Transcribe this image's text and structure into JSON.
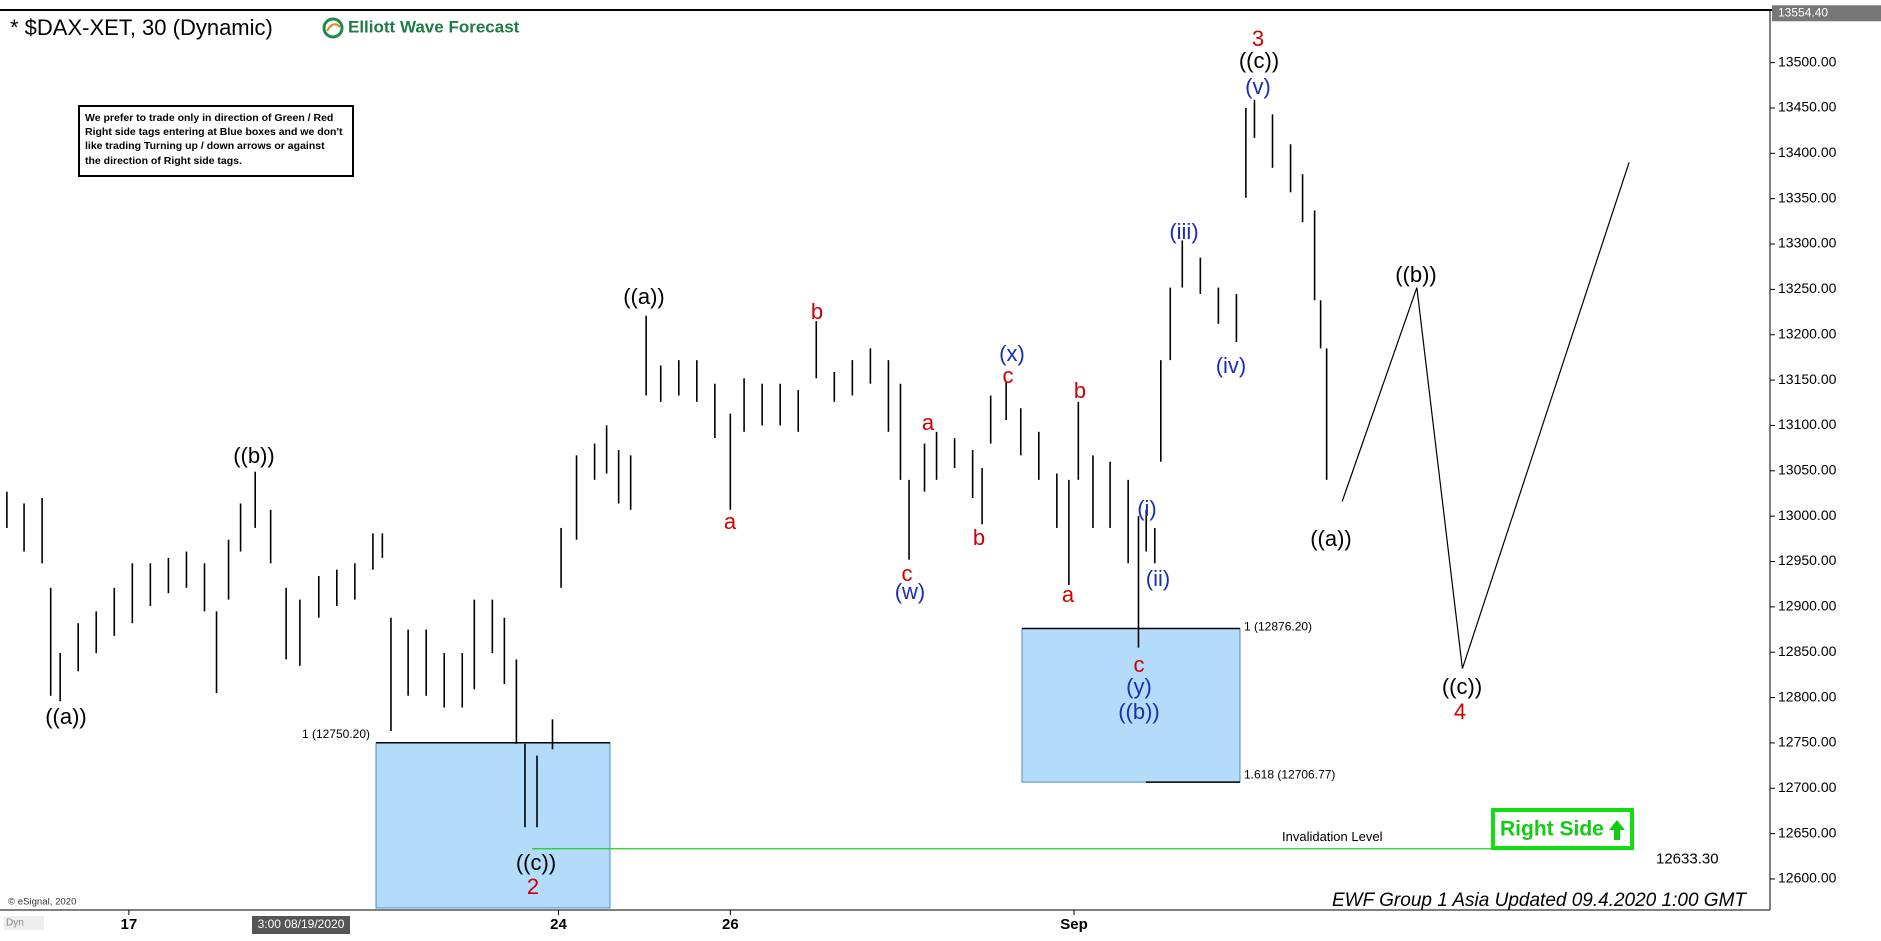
{
  "header": {
    "title": "* $DAX-XET, 30 (Dynamic)",
    "logo": "Elliott Wave Forecast"
  },
  "note": [
    "We prefer to trade only in direction of Green / Red",
    "Right side tags entering at Blue boxes and we don't",
    "like trading Turning up / down arrows or against",
    "the direction of Right side tags."
  ],
  "footer": {
    "update": "EWF Group 1 Asia Updated 09.4.2020 1:00 GMT",
    "copyright": "© eSignal, 2020",
    "dyn": "Dyn",
    "crosshair": "3:00 08/19/2020"
  },
  "right_side": "Right Side",
  "chart_data": {
    "type": "range-bar",
    "color": "#000000",
    "x": [
      -1.42,
      -1.22,
      -1.01,
      -0.91,
      -0.8,
      -0.59,
      -0.38,
      -0.17,
      0.04,
      0.25,
      0.46,
      0.67,
      0.88,
      1.02,
      1.16,
      1.3,
      1.47,
      1.65,
      1.83,
      1.99,
      2.21,
      2.42,
      2.63,
      2.84,
      2.95,
      3.05,
      3.25,
      3.46,
      3.67,
      3.88,
      4.02,
      4.23,
      4.37,
      4.51,
      4.61,
      4.75,
      4.93,
      5.03,
      5.21,
      5.42,
      5.56,
      5.7,
      5.84,
      6.02,
      6.19,
      6.4,
      6.61,
      6.82,
      7.0,
      7.16,
      7.37,
      7.58,
      7.79,
      8.0,
      8.21,
      8.42,
      8.63,
      8.84,
      8.98,
      9.08,
      9.26,
      9.4,
      9.61,
      9.82,
      9.93,
      10.03,
      10.21,
      10.38,
      10.59,
      10.8,
      10.94,
      11.05,
      11.22,
      11.42,
      11.63,
      11.75,
      11.84,
      11.94,
      12.01,
      12.12,
      12.26,
      12.47,
      12.68,
      12.89,
      13.0,
      13.1,
      13.31,
      13.52,
      13.66,
      13.8,
      13.87,
      13.94
    ],
    "high": [
      13027,
      13014,
      13020,
      12921,
      12849,
      12882,
      12895,
      12921,
      12948,
      12948,
      12954,
      12961,
      12948,
      12895,
      12974,
      13014,
      13049,
      13007,
      12921,
      12908,
      12934,
      12941,
      12948,
      12981,
      12981,
      12888,
      12875,
      12875,
      12849,
      12849,
      12908,
      12908,
      12888,
      12842,
      12749,
      12736,
      12776,
      12987,
      13067,
      13080,
      13100,
      13073,
      13067,
      13221,
      13166,
      13172,
      13172,
      13146,
      13113,
      13152,
      13146,
      13146,
      13139,
      13215,
      13159,
      13172,
      13185,
      13172,
      13146,
      13040,
      13080,
      13093,
      13086,
      13073,
      13053,
      13133,
      13148,
      13119,
      13093,
      13047,
      13040,
      13126,
      13067,
      13060,
      13040,
      13000,
      13007,
      12987,
      13172,
      13252,
      13304,
      13285,
      13252,
      13245,
      13450,
      13459,
      13443,
      13410,
      13377,
      13337,
      13238,
      13185
    ],
    "low": [
      12987,
      12961,
      12948,
      12802,
      12796,
      12829,
      12849,
      12868,
      12882,
      12901,
      12915,
      12921,
      12895,
      12805,
      12908,
      12961,
      12987,
      12948,
      12842,
      12835,
      12888,
      12901,
      12908,
      12941,
      12954,
      12763,
      12802,
      12802,
      12789,
      12789,
      12809,
      12849,
      12815,
      12749,
      12657,
      12657,
      12743,
      12921,
      12974,
      13040,
      13047,
      13014,
      13007,
      13133,
      13126,
      13133,
      13126,
      13086,
      13007,
      13093,
      13100,
      13100,
      13093,
      13152,
      13126,
      13133,
      13146,
      13093,
      13040,
      12952,
      13027,
      13040,
      13053,
      13020,
      12991,
      13080,
      13106,
      13067,
      13040,
      12987,
      12924,
      13040,
      12987,
      12987,
      12948,
      12855,
      12961,
      12948,
      13060,
      13172,
      13252,
      13245,
      13212,
      13192,
      13351,
      13417,
      13384,
      13357,
      13324,
      13238,
      13185,
      13040
    ],
    "xlim": [
      -1.5,
      19.1
    ],
    "ylim": [
      12568,
      13558
    ],
    "xticks": [
      {
        "value": 0,
        "label": "17"
      },
      {
        "value": 5,
        "label": "24"
      },
      {
        "value": 7,
        "label": "26"
      },
      {
        "value": 11,
        "label": "Sep"
      }
    ],
    "yticks": [
      {
        "value": 12600,
        "label": "12600.00"
      },
      {
        "value": 12650,
        "label": "12650.00"
      },
      {
        "value": 12700,
        "label": "12700.00"
      },
      {
        "value": 12750,
        "label": "12750.00"
      },
      {
        "value": 12800,
        "label": "12800.00"
      },
      {
        "value": 12850,
        "label": "12850.00"
      },
      {
        "value": 12900,
        "label": "12900.00"
      },
      {
        "value": 12950,
        "label": "12950.00"
      },
      {
        "value": 13000,
        "label": "13000.00"
      },
      {
        "value": 13050,
        "label": "13050.00"
      },
      {
        "value": 13100,
        "label": "13100.00"
      },
      {
        "value": 13150,
        "label": "13150.00"
      },
      {
        "value": 13200,
        "label": "13200.00"
      },
      {
        "value": 13250,
        "label": "13250.00"
      },
      {
        "value": 13300,
        "label": "13300.00"
      },
      {
        "value": 13350,
        "label": "13350.00"
      },
      {
        "value": 13400,
        "label": "13400.00"
      },
      {
        "value": 13450,
        "label": "13450.00"
      },
      {
        "value": 13500,
        "label": "13500.00"
      }
    ],
    "last_price": {
      "value": 13554.4,
      "label": "13554.40"
    },
    "box_color": "#b3dcfa",
    "boxes": [
      {
        "top": {
          "value": 12750.2,
          "label": "1 (12750.20)"
        }
      },
      {
        "top": {
          "value": 12876.2,
          "label": "1 (12876.20)"
        },
        "bottom": {
          "value": 12706.77,
          "label": "1.618 (12706.77)"
        }
      }
    ],
    "invalidation": {
      "name": "Invalidation Level",
      "value": 12633.3,
      "label": "12633.30",
      "color": "#22cc22"
    },
    "projection": {
      "x": [
        14.12,
        14.99,
        15.52,
        17.46
      ],
      "values": [
        13016,
        13252,
        12832,
        13390
      ]
    },
    "annotations": [
      {
        "text": "((a))",
        "color": "#000000"
      },
      {
        "text": "((b))",
        "color": "#000000"
      },
      {
        "text": "((c))",
        "color": "#000000"
      },
      {
        "text": "2",
        "color": "#d00000"
      },
      {
        "text": "((a))",
        "color": "#000000"
      },
      {
        "text": "a",
        "color": "#d00000"
      },
      {
        "text": "b",
        "color": "#d00000"
      },
      {
        "text": "a",
        "color": "#d00000"
      },
      {
        "text": "c",
        "color": "#d00000"
      },
      {
        "text": "(w)",
        "color": "#1a2db5"
      },
      {
        "text": "b",
        "color": "#d00000"
      },
      {
        "text": "(x)",
        "color": "#1a2db5"
      },
      {
        "text": "c",
        "color": "#d00000"
      },
      {
        "text": "b",
        "color": "#d00000"
      },
      {
        "text": "a",
        "color": "#d00000"
      },
      {
        "text": "(i)",
        "color": "#1a2db5"
      },
      {
        "text": "(ii)",
        "color": "#1a2db5"
      },
      {
        "text": "c",
        "color": "#d00000"
      },
      {
        "text": "(y)",
        "color": "#1a2db5"
      },
      {
        "text": "((b))",
        "color": "#1a2db5"
      },
      {
        "text": "(iii)",
        "color": "#1a2db5"
      },
      {
        "text": "(iv)",
        "color": "#1a2db5"
      },
      {
        "text": "(v)",
        "color": "#1a2db5"
      },
      {
        "text": "((c))",
        "color": "#000000"
      },
      {
        "text": "3",
        "color": "#d00000"
      },
      {
        "text": "((a))",
        "color": "#000000"
      },
      {
        "text": "((b))",
        "color": "#000000"
      },
      {
        "text": "((c))",
        "color": "#000000"
      },
      {
        "text": "4",
        "color": "#d00000"
      }
    ]
  }
}
